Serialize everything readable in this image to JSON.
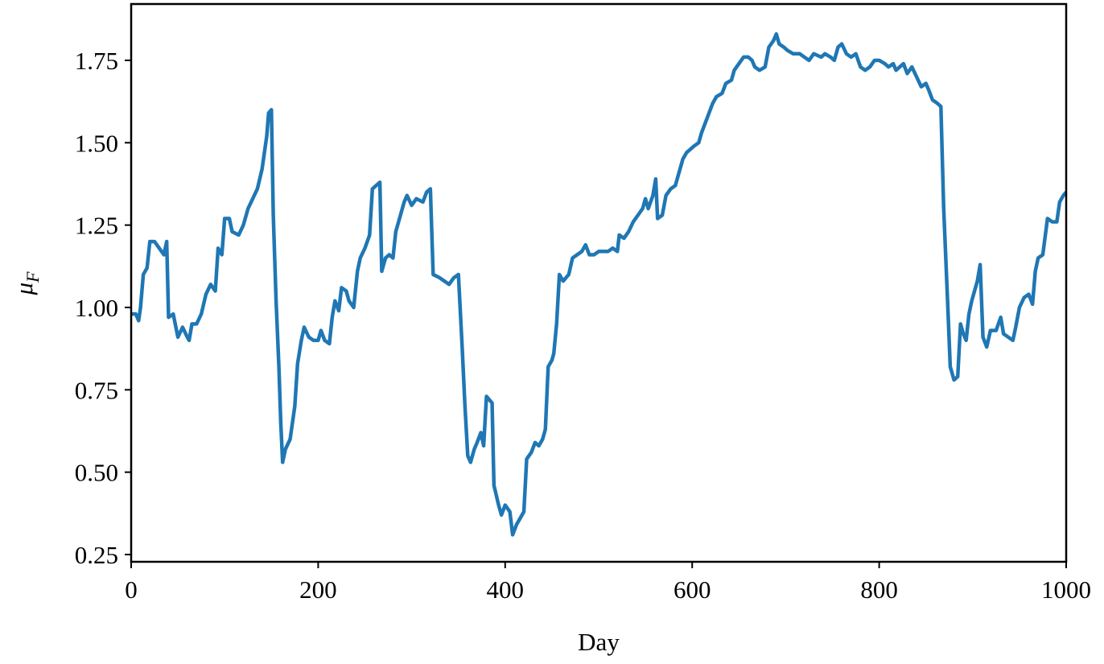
{
  "chart_data": {
    "type": "line",
    "xlabel": "Day",
    "ylabel": {
      "base": "μ",
      "sub": "F"
    },
    "xlim": [
      0,
      1000
    ],
    "ylim": [
      0.228,
      1.921
    ],
    "xticks": [
      0,
      200,
      400,
      600,
      800,
      1000
    ],
    "yticks": [
      0.25,
      {
        "value": 0.5,
        "label": "0.50"
      },
      0.75,
      {
        "value": 1.0,
        "label": "1.00"
      },
      1.25,
      {
        "value": 1.5,
        "label": "1.50"
      },
      1.75
    ],
    "x": [
      0,
      5,
      8,
      10,
      13,
      17,
      20,
      25,
      30,
      35,
      38,
      40,
      45,
      50,
      55,
      60,
      62,
      65,
      70,
      75,
      80,
      85,
      90,
      93,
      97,
      100,
      105,
      108,
      115,
      120,
      125,
      130,
      135,
      140,
      145,
      147,
      150,
      152,
      155,
      158,
      160,
      162,
      165,
      170,
      175,
      178,
      182,
      185,
      190,
      195,
      200,
      203,
      207,
      212,
      215,
      218,
      222,
      225,
      230,
      233,
      238,
      242,
      245,
      250,
      255,
      258,
      262,
      266,
      268,
      272,
      276,
      280,
      283,
      287,
      292,
      295,
      300,
      305,
      312,
      316,
      320,
      323,
      330,
      335,
      340,
      345,
      350,
      354,
      357,
      360,
      363,
      367,
      370,
      374,
      377,
      380,
      386,
      388,
      393,
      396,
      400,
      405,
      408,
      412,
      416,
      420,
      423,
      428,
      432,
      436,
      440,
      443,
      446,
      450,
      452,
      455,
      458,
      462,
      468,
      472,
      477,
      482,
      486,
      490,
      495,
      500,
      510,
      515,
      520,
      522,
      527,
      532,
      537,
      542,
      547,
      550,
      553,
      558,
      561,
      563,
      568,
      572,
      577,
      582,
      586,
      590,
      594,
      598,
      602,
      607,
      610,
      614,
      618,
      622,
      626,
      632,
      636,
      642,
      645,
      650,
      655,
      660,
      664,
      667,
      672,
      678,
      682,
      687,
      690,
      693,
      698,
      702,
      708,
      715,
      720,
      725,
      730,
      738,
      742,
      748,
      752,
      756,
      760,
      765,
      770,
      775,
      780,
      785,
      790,
      795,
      800,
      806,
      810,
      815,
      818,
      822,
      826,
      830,
      835,
      840,
      845,
      850,
      853,
      857,
      862,
      866,
      869,
      873,
      876,
      880,
      884,
      887,
      890,
      893,
      896,
      899,
      902,
      905,
      908,
      911,
      915,
      919,
      925,
      930,
      933,
      938,
      943,
      946,
      950,
      955,
      960,
      964,
      967,
      970,
      975,
      980,
      985,
      990,
      993,
      997,
      1000
    ],
    "series": [
      {
        "color": "#1f77b4",
        "values": [
          0.98,
          0.98,
          0.96,
          1.0,
          1.1,
          1.12,
          1.2,
          1.2,
          1.18,
          1.16,
          1.2,
          0.97,
          0.98,
          0.91,
          0.94,
          0.91,
          0.9,
          0.95,
          0.95,
          0.98,
          1.04,
          1.07,
          1.05,
          1.18,
          1.16,
          1.27,
          1.27,
          1.23,
          1.22,
          1.25,
          1.3,
          1.33,
          1.36,
          1.42,
          1.52,
          1.59,
          1.6,
          1.28,
          1.02,
          0.82,
          0.65,
          0.53,
          0.57,
          0.6,
          0.7,
          0.83,
          0.9,
          0.94,
          0.91,
          0.9,
          0.9,
          0.93,
          0.9,
          0.89,
          0.97,
          1.02,
          0.99,
          1.06,
          1.05,
          1.02,
          1.0,
          1.11,
          1.15,
          1.18,
          1.22,
          1.36,
          1.37,
          1.38,
          1.11,
          1.15,
          1.16,
          1.15,
          1.23,
          1.27,
          1.32,
          1.34,
          1.31,
          1.33,
          1.32,
          1.35,
          1.36,
          1.1,
          1.09,
          1.08,
          1.07,
          1.09,
          1.1,
          0.88,
          0.7,
          0.55,
          0.53,
          0.57,
          0.59,
          0.62,
          0.58,
          0.73,
          0.71,
          0.46,
          0.4,
          0.37,
          0.4,
          0.38,
          0.31,
          0.34,
          0.36,
          0.38,
          0.54,
          0.56,
          0.59,
          0.58,
          0.6,
          0.63,
          0.82,
          0.84,
          0.86,
          0.95,
          1.1,
          1.08,
          1.1,
          1.15,
          1.16,
          1.17,
          1.19,
          1.16,
          1.16,
          1.17,
          1.17,
          1.18,
          1.17,
          1.22,
          1.21,
          1.23,
          1.26,
          1.28,
          1.3,
          1.33,
          1.3,
          1.34,
          1.39,
          1.27,
          1.28,
          1.34,
          1.36,
          1.37,
          1.41,
          1.45,
          1.47,
          1.48,
          1.49,
          1.5,
          1.53,
          1.56,
          1.59,
          1.62,
          1.64,
          1.65,
          1.68,
          1.69,
          1.72,
          1.74,
          1.76,
          1.76,
          1.75,
          1.73,
          1.72,
          1.73,
          1.79,
          1.81,
          1.83,
          1.8,
          1.79,
          1.78,
          1.77,
          1.77,
          1.76,
          1.75,
          1.77,
          1.76,
          1.77,
          1.76,
          1.75,
          1.79,
          1.8,
          1.77,
          1.76,
          1.77,
          1.73,
          1.72,
          1.73,
          1.75,
          1.75,
          1.74,
          1.73,
          1.74,
          1.72,
          1.73,
          1.74,
          1.71,
          1.73,
          1.7,
          1.67,
          1.68,
          1.66,
          1.63,
          1.62,
          1.61,
          1.3,
          1.03,
          0.82,
          0.78,
          0.79,
          0.95,
          0.92,
          0.9,
          0.98,
          1.02,
          1.05,
          1.08,
          1.13,
          0.91,
          0.88,
          0.93,
          0.93,
          0.97,
          0.92,
          0.91,
          0.9,
          0.94,
          1.0,
          1.03,
          1.04,
          1.01,
          1.11,
          1.15,
          1.16,
          1.27,
          1.26,
          1.26,
          1.32,
          1.34,
          1.35
        ]
      }
    ]
  }
}
